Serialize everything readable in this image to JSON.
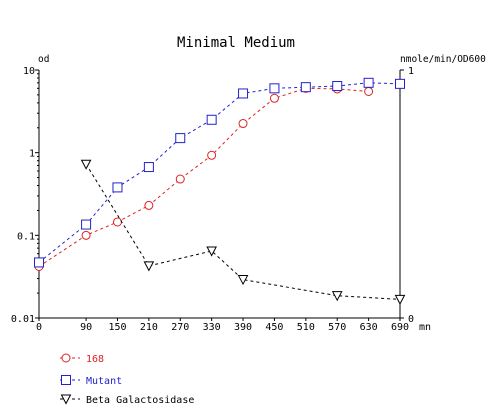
{
  "chart_data": {
    "type": "line",
    "title": "Minimal Medium",
    "ylabel": "od",
    "y2label": "nmole/min/OD600",
    "xunit": "mn",
    "x_ticks": [
      0,
      90,
      150,
      210,
      270,
      330,
      390,
      450,
      510,
      570,
      630,
      690
    ],
    "x_tick_labels": [
      "0",
      "90",
      "150",
      "210",
      "270",
      "330",
      "390",
      "450",
      "510",
      "570",
      "630",
      "690"
    ],
    "xlim": [
      0,
      690
    ],
    "y_scale": "log",
    "ylim": [
      0.01,
      10
    ],
    "y_tick_labels": [
      "10",
      "1",
      "0.1",
      "0.01"
    ],
    "y2lim": [
      0,
      1
    ],
    "y2_tick_labels": [
      "1",
      "0"
    ],
    "grid": false,
    "legend_position": "bottom-left",
    "series": [
      {
        "name": "168",
        "axis": "left",
        "color": "#dd2222",
        "marker": "circle",
        "x": [
          0,
          90,
          150,
          210,
          270,
          330,
          390,
          450,
          510,
          570,
          630
        ],
        "values": [
          0.042,
          0.1,
          0.145,
          0.23,
          0.48,
          0.93,
          2.25,
          4.55,
          6.0,
          5.9,
          5.5
        ]
      },
      {
        "name": "Mutant",
        "axis": "left",
        "color": "#2222cc",
        "marker": "square",
        "x": [
          0,
          90,
          150,
          210,
          270,
          330,
          390,
          450,
          510,
          570,
          630,
          690
        ],
        "values": [
          0.047,
          0.135,
          0.38,
          0.67,
          1.5,
          2.5,
          5.2,
          6.0,
          6.2,
          6.4,
          7.0,
          6.8
        ]
      },
      {
        "name": "Beta Galactosidase",
        "axis": "right",
        "color": "#000000",
        "marker": "triangle-down",
        "x": [
          90,
          210,
          330,
          390,
          570,
          690
        ],
        "values": [
          0.62,
          0.21,
          0.27,
          0.155,
          0.09,
          0.075
        ]
      }
    ]
  }
}
